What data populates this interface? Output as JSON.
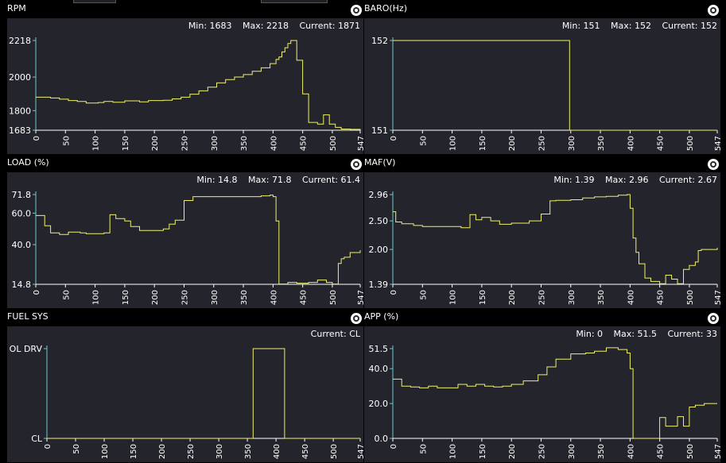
{
  "colors": {
    "background": "#000000",
    "plot": "#24242c",
    "trace": "#f0f06a",
    "axis_x": "#ffffff",
    "axis_y": "#6fc9cf",
    "text": "#ffffff"
  },
  "icons": {
    "settings": "gear-icon"
  },
  "panels": [
    {
      "id": "rpm",
      "title": "RPM",
      "stats": {
        "min": "Min: 1683",
        "max": "Max: 2218",
        "current": "Current: 1871"
      },
      "chart_data": {
        "type": "line",
        "step": true,
        "xlim": [
          0,
          547
        ],
        "ylim": [
          1683,
          2218
        ],
        "xticks": [
          "0",
          "50",
          "100",
          "150",
          "200",
          "250",
          "300",
          "350",
          "400",
          "450",
          "500",
          "547"
        ],
        "yticks": [
          {
            "v": 2218,
            "label": "2218"
          },
          {
            "v": 2000,
            "label": "2000"
          },
          {
            "v": 1800,
            "label": "1800"
          },
          {
            "v": 1683,
            "label": "1683"
          }
        ],
        "x": [
          0,
          25,
          40,
          55,
          70,
          85,
          105,
          115,
          130,
          150,
          175,
          190,
          215,
          230,
          245,
          260,
          275,
          290,
          305,
          320,
          335,
          350,
          365,
          380,
          395,
          405,
          410,
          415,
          420,
          425,
          430,
          435,
          440,
          450,
          460,
          475,
          485,
          495,
          505,
          515,
          530,
          547
        ],
        "y": [
          1880,
          1875,
          1868,
          1860,
          1855,
          1845,
          1848,
          1855,
          1850,
          1858,
          1852,
          1860,
          1862,
          1870,
          1880,
          1898,
          1918,
          1940,
          1965,
          1985,
          2000,
          2015,
          2035,
          2055,
          2080,
          2105,
          2120,
          2150,
          2175,
          2200,
          2218,
          2218,
          2100,
          1900,
          1730,
          1720,
          1775,
          1720,
          1700,
          1690,
          1688,
          1683
        ]
      }
    },
    {
      "id": "baro",
      "title": "BARO(Hz)",
      "stats": {
        "min": "Min: 151",
        "max": "Max: 152",
        "current": "Current: 152"
      },
      "chart_data": {
        "type": "line",
        "step": true,
        "xlim": [
          0,
          547
        ],
        "ylim": [
          151,
          152
        ],
        "xticks": [
          "0",
          "50",
          "100",
          "150",
          "200",
          "250",
          "300",
          "350",
          "400",
          "450",
          "500",
          "547"
        ],
        "yticks": [
          {
            "v": 152,
            "label": "152"
          },
          {
            "v": 151,
            "label": "151"
          }
        ],
        "x": [
          0,
          295,
          298,
          547
        ],
        "y": [
          152,
          152,
          151,
          151
        ]
      }
    },
    {
      "id": "load",
      "title": "LOAD (%)",
      "stats": {
        "min": "Min: 14.8",
        "max": "Max: 71.8",
        "current": "Current: 61.4"
      },
      "chart_data": {
        "type": "line",
        "step": true,
        "xlim": [
          0,
          547
        ],
        "ylim": [
          14.8,
          71.8
        ],
        "xticks": [
          "0",
          "50",
          "100",
          "150",
          "200",
          "250",
          "300",
          "350",
          "400",
          "450",
          "500",
          "547"
        ],
        "yticks": [
          {
            "v": 71.8,
            "label": "71.8"
          },
          {
            "v": 60.0,
            "label": "60.0"
          },
          {
            "v": 40.0,
            "label": "40.0"
          },
          {
            "v": 14.8,
            "label": "14.8"
          }
        ],
        "x": [
          0,
          15,
          25,
          40,
          55,
          75,
          85,
          115,
          125,
          135,
          150,
          160,
          175,
          195,
          215,
          225,
          235,
          250,
          265,
          300,
          380,
          395,
          400,
          405,
          410,
          425,
          440,
          460,
          475,
          490,
          500,
          505,
          510,
          515,
          520,
          530,
          547
        ],
        "y": [
          58.5,
          52,
          47.5,
          46.5,
          48,
          47.5,
          47,
          47.5,
          59,
          56.5,
          55,
          51.5,
          49,
          49,
          50,
          53,
          55.5,
          68,
          70.5,
          70.5,
          71,
          71.5,
          70.5,
          55,
          15,
          16,
          15.5,
          16,
          17.5,
          16,
          15,
          15,
          28,
          31,
          32,
          35,
          36.5
        ]
      }
    },
    {
      "id": "maf",
      "title": "MAF(V)",
      "stats": {
        "min": "Min: 1.39",
        "max": "Max: 2.96",
        "current": "Current: 2.67"
      },
      "chart_data": {
        "type": "line",
        "step": true,
        "xlim": [
          0,
          547
        ],
        "ylim": [
          1.39,
          2.96
        ],
        "xticks": [
          "0",
          "50",
          "100",
          "150",
          "200",
          "250",
          "300",
          "350",
          "400",
          "450",
          "500",
          "547"
        ],
        "yticks": [
          {
            "v": 2.96,
            "label": "2.96"
          },
          {
            "v": 2.5,
            "label": "2.50"
          },
          {
            "v": 2.0,
            "label": "2.00"
          },
          {
            "v": 1.39,
            "label": "1.39"
          }
        ],
        "x": [
          0,
          5,
          15,
          35,
          50,
          75,
          115,
          130,
          140,
          150,
          165,
          180,
          200,
          230,
          250,
          265,
          275,
          300,
          320,
          340,
          360,
          380,
          395,
          400,
          405,
          410,
          415,
          425,
          435,
          450,
          460,
          470,
          480,
          490,
          500,
          510,
          515,
          520,
          530,
          547
        ],
        "y": [
          2.66,
          2.48,
          2.45,
          2.42,
          2.4,
          2.4,
          2.38,
          2.61,
          2.52,
          2.56,
          2.5,
          2.44,
          2.46,
          2.5,
          2.62,
          2.85,
          2.86,
          2.87,
          2.9,
          2.92,
          2.93,
          2.95,
          2.96,
          2.72,
          2.2,
          1.95,
          1.75,
          1.5,
          1.44,
          1.4,
          1.55,
          1.48,
          1.4,
          1.65,
          1.72,
          1.78,
          1.98,
          2.0,
          2.0,
          2.03
        ]
      }
    },
    {
      "id": "fuel_sys",
      "title": "FUEL SYS",
      "stats": {
        "current": "Current: CL"
      },
      "chart_data": {
        "type": "line",
        "step": true,
        "xlim": [
          0,
          547
        ],
        "ylim": [
          0,
          1
        ],
        "xticks": [
          "0",
          "50",
          "100",
          "150",
          "200",
          "250",
          "300",
          "350",
          "400",
          "450",
          "500",
          "547"
        ],
        "yticks": [
          {
            "v": 1,
            "label": "OL DRV"
          },
          {
            "v": 0,
            "label": "CL"
          }
        ],
        "x": [
          0,
          355,
          360,
          410,
          415,
          547
        ],
        "y": [
          0,
          0,
          1,
          1,
          0,
          0
        ]
      }
    },
    {
      "id": "app",
      "title": "APP (%)",
      "stats": {
        "min": "Min: 0",
        "max": "Max: 51.5",
        "current": "Current: 33"
      },
      "chart_data": {
        "type": "line",
        "step": true,
        "xlim": [
          0,
          547
        ],
        "ylim": [
          0,
          51.5
        ],
        "xticks": [
          "0",
          "50",
          "100",
          "150",
          "200",
          "250",
          "300",
          "350",
          "400",
          "450",
          "500",
          "547"
        ],
        "yticks": [
          {
            "v": 51.5,
            "label": "51.5"
          },
          {
            "v": 40.0,
            "label": "40.0"
          },
          {
            "v": 20.0,
            "label": "20.0"
          },
          {
            "v": 0.0,
            "label": "0.0"
          }
        ],
        "x": [
          0,
          15,
          30,
          45,
          60,
          75,
          95,
          110,
          125,
          140,
          155,
          170,
          185,
          200,
          220,
          245,
          260,
          275,
          300,
          325,
          340,
          360,
          380,
          395,
          400,
          405,
          415,
          440,
          450,
          460,
          470,
          480,
          490,
          500,
          510,
          525,
          547
        ],
        "y": [
          34,
          30,
          29.5,
          29,
          30,
          29,
          29,
          31,
          30,
          31,
          30,
          29.5,
          30,
          31,
          33,
          36.5,
          41,
          45.5,
          48.5,
          49,
          50,
          52,
          51,
          49,
          40,
          0,
          0,
          0,
          12,
          7,
          7,
          12.5,
          7,
          18,
          19,
          20,
          20
        ]
      }
    }
  ]
}
